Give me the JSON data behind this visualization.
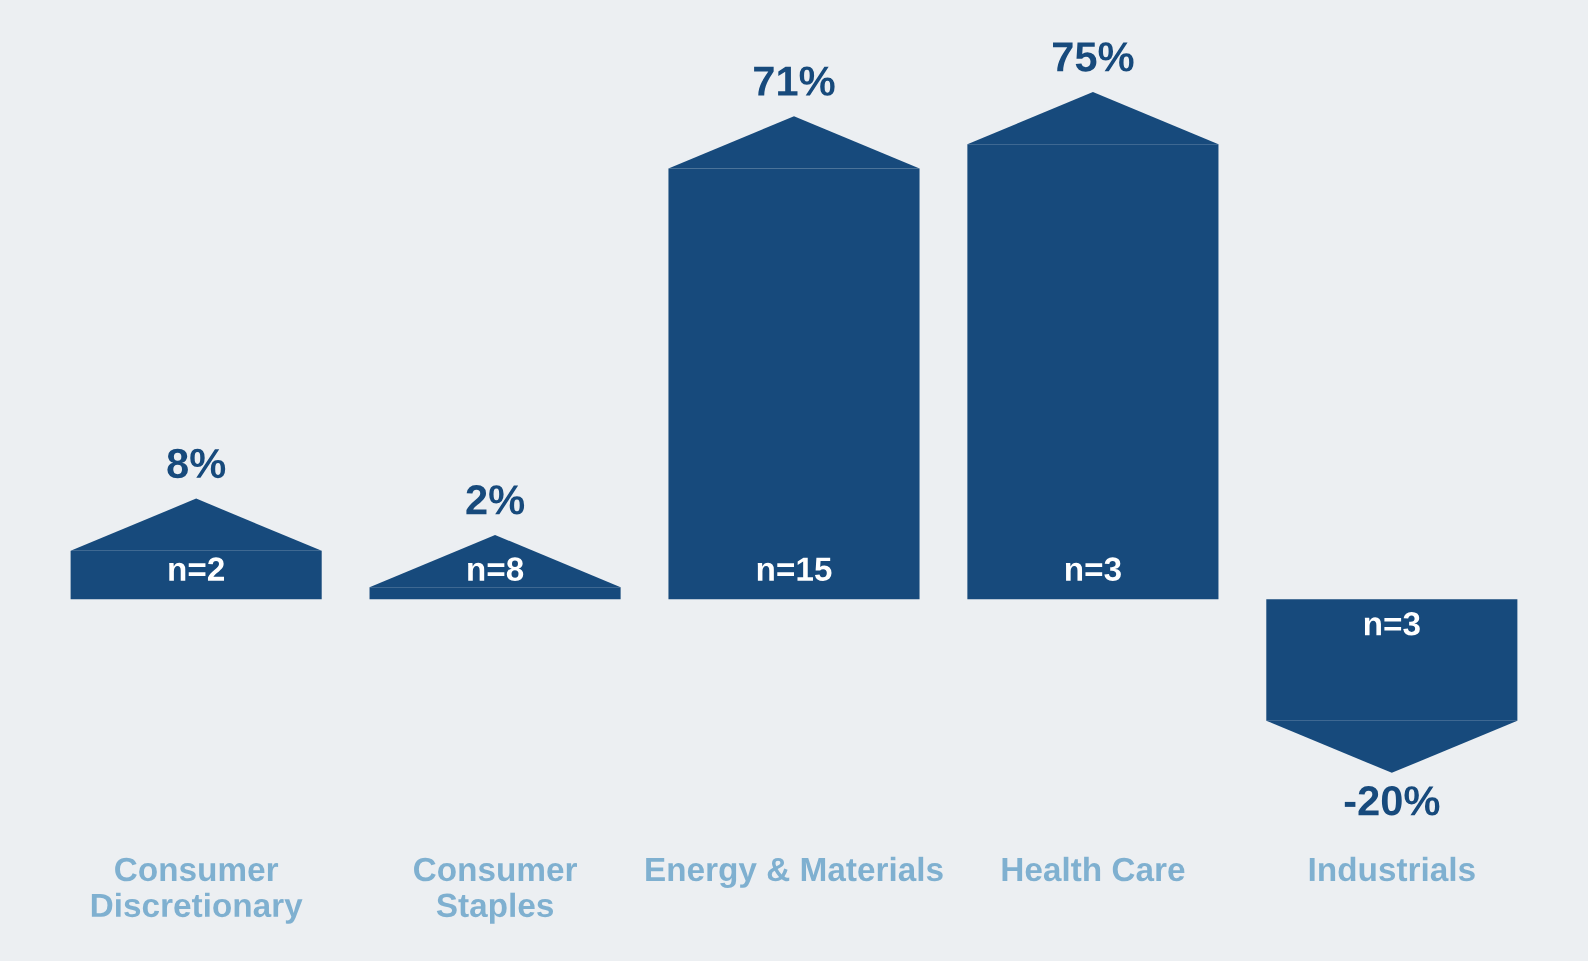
{
  "chart_data": {
    "type": "bar",
    "categories": [
      "Consumer Discretionary",
      "Consumer Staples",
      "Energy & Materials",
      "Health Care",
      "Industrials"
    ],
    "values": [
      8,
      2,
      71,
      75,
      -20
    ],
    "value_labels": [
      "8%",
      "2%",
      "71%",
      "75%",
      "-20%"
    ],
    "color": "#174a7c",
    "annotations": [
      "n=2",
      "n=8",
      "n=15",
      "n=3",
      "n=3"
    ]
  }
}
